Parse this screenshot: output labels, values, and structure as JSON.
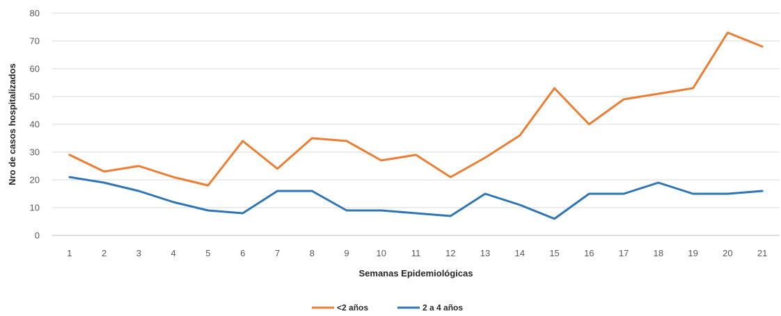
{
  "chart_data": {
    "type": "line",
    "title": "",
    "xlabel": "Semanas Epidemiológicas",
    "ylabel": "Nro de casos hospitalizados",
    "ylim": [
      0,
      80
    ],
    "yticks": [
      0,
      10,
      20,
      30,
      40,
      50,
      60,
      70,
      80
    ],
    "categories": [
      "1",
      "2",
      "3",
      "4",
      "5",
      "6",
      "7",
      "8",
      "9",
      "10",
      "11",
      "12",
      "13",
      "14",
      "15",
      "16",
      "17",
      "18",
      "19",
      "20",
      "21"
    ],
    "grid": "horizontal",
    "legend_position": "bottom",
    "series": [
      {
        "name": "<2 años",
        "color": "#ED7D31",
        "values": [
          29,
          23,
          25,
          21,
          18,
          34,
          24,
          35,
          34,
          27,
          29,
          21,
          28,
          36,
          53,
          40,
          49,
          51,
          53,
          73,
          68
        ]
      },
      {
        "name": "2 a 4 años",
        "color": "#2E75B6",
        "values": [
          21,
          19,
          16,
          12,
          9,
          8,
          16,
          16,
          9,
          9,
          8,
          7,
          15,
          11,
          6,
          15,
          15,
          19,
          15,
          15,
          16
        ]
      }
    ]
  }
}
